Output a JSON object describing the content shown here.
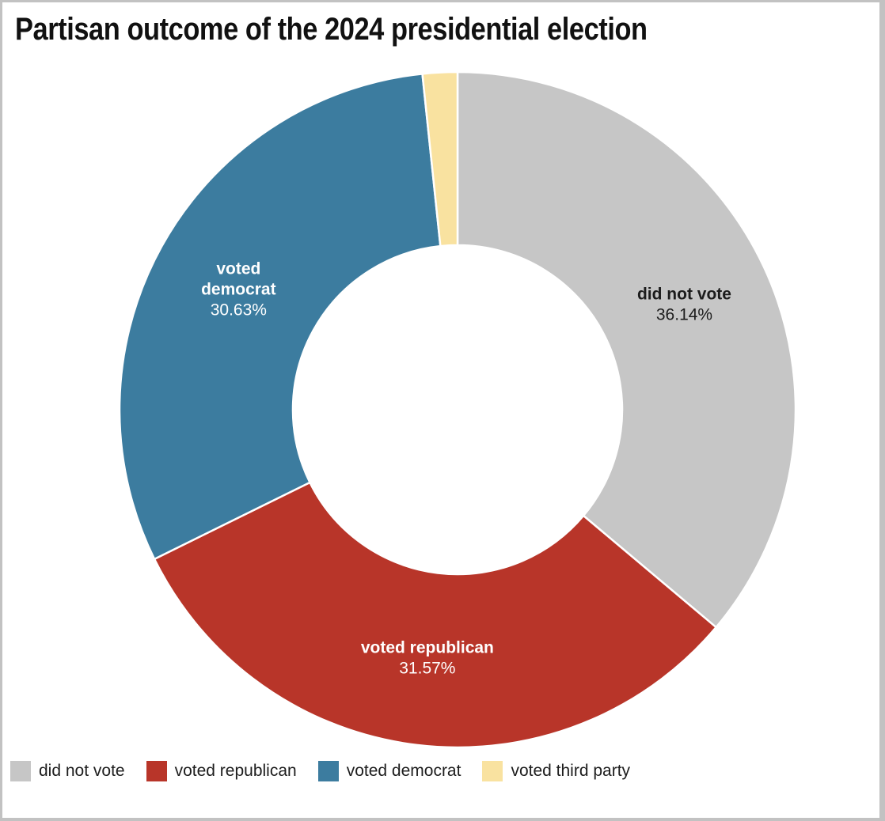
{
  "title": "Partisan outcome of the 2024 presidential election",
  "colors": {
    "background": "#ffffff",
    "frame_border": "#c2c2c2",
    "title_text": "#111111",
    "legend_text": "#1d1d1d",
    "slice_gap_stroke": "#ffffff"
  },
  "chart_data": {
    "type": "pie",
    "donut": true,
    "title": "Partisan outcome of the 2024 presidential election",
    "start_angle_deg": 0,
    "direction": "clockwise",
    "legend_position": "bottom-left",
    "categories": [
      "did not vote",
      "voted republican",
      "voted democrat",
      "voted third party"
    ],
    "values": [
      36.14,
      31.57,
      30.63,
      1.66
    ],
    "slices": [
      {
        "label": "did not vote",
        "value": 36.14,
        "pct_text": "36.14%",
        "color": "#c6c6c6",
        "label_color": "#1c1c1c",
        "label_lines": [
          "did not vote"
        ],
        "show_label": true
      },
      {
        "label": "voted republican",
        "value": 31.57,
        "pct_text": "31.57%",
        "color": "#b83529",
        "label_color": "#ffffff",
        "label_lines": [
          "voted republican"
        ],
        "show_label": true
      },
      {
        "label": "voted democrat",
        "value": 30.63,
        "pct_text": "30.63%",
        "color": "#3c7c9f",
        "label_color": "#ffffff",
        "label_lines": [
          "voted",
          "democrat"
        ],
        "show_label": true
      },
      {
        "label": "voted third party",
        "value": 1.66,
        "pct_text": "",
        "color": "#f9e2a0",
        "label_color": "#1c1c1c",
        "label_lines": [],
        "show_label": false
      }
    ]
  }
}
